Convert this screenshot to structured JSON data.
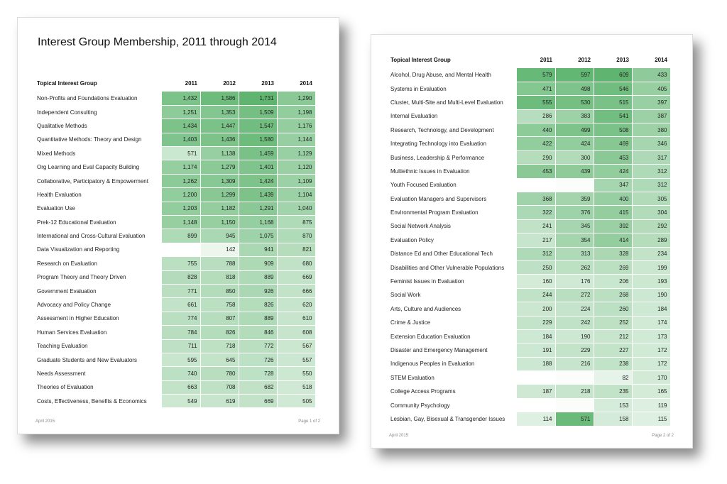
{
  "page1": {
    "title": "Interest Group Membership, 2011 through 2014",
    "headers": [
      "Topical Interest Group",
      "2011",
      "2012",
      "2013",
      "2014"
    ],
    "rows": [
      {
        "name": "Non-Profits and Foundations Evaluation",
        "v": [
          "1,432",
          "1,586",
          "1,731",
          "1,290"
        ]
      },
      {
        "name": "Independent Consulting",
        "v": [
          "1,251",
          "1,353",
          "1,509",
          "1,198"
        ]
      },
      {
        "name": "Qualitative Methods",
        "v": [
          "1,434",
          "1,447",
          "1,547",
          "1,176"
        ]
      },
      {
        "name": "Quantitative Methods: Theory and Design",
        "v": [
          "1,403",
          "1,436",
          "1,580",
          "1,144"
        ]
      },
      {
        "name": "Mixed Methods",
        "v": [
          "571",
          "1,138",
          "1,459",
          "1,129"
        ]
      },
      {
        "name": "Org Learning and Eval Capacity Building",
        "v": [
          "1,174",
          "1,279",
          "1,401",
          "1,120"
        ]
      },
      {
        "name": "Collaborative, Participatory & Empowerment",
        "v": [
          "1,262",
          "1,309",
          "1,424",
          "1,109"
        ]
      },
      {
        "name": "Health Evaluation",
        "v": [
          "1,200",
          "1,299",
          "1,439",
          "1,104"
        ]
      },
      {
        "name": "Evaluation Use",
        "v": [
          "1,203",
          "1,182",
          "1,291",
          "1,040"
        ]
      },
      {
        "name": "Prek-12 Educational Evaluation",
        "v": [
          "1,148",
          "1,150",
          "1,168",
          "875"
        ]
      },
      {
        "name": "International and Cross-Cultural Evaluation",
        "v": [
          "899",
          "945",
          "1,075",
          "870"
        ]
      },
      {
        "name": "Data Visualization and Reporting",
        "v": [
          "",
          "142",
          "941",
          "821"
        ]
      },
      {
        "name": "Research on Evaluation",
        "v": [
          "755",
          "788",
          "909",
          "680"
        ]
      },
      {
        "name": "Program Theory and Theory Driven",
        "v": [
          "828",
          "818",
          "889",
          "669"
        ]
      },
      {
        "name": "Government Evaluation",
        "v": [
          "771",
          "850",
          "926",
          "666"
        ]
      },
      {
        "name": "Advocacy and Policy Change",
        "v": [
          "661",
          "758",
          "826",
          "620"
        ]
      },
      {
        "name": "Assessment in Higher Education",
        "v": [
          "774",
          "807",
          "889",
          "610"
        ]
      },
      {
        "name": "Human Services Evaluation",
        "v": [
          "784",
          "826",
          "846",
          "608"
        ]
      },
      {
        "name": "Teaching Evaluation",
        "v": [
          "711",
          "718",
          "772",
          "567"
        ]
      },
      {
        "name": "Graduate Students and New Evaluators",
        "v": [
          "595",
          "645",
          "726",
          "557"
        ]
      },
      {
        "name": "Needs Assessment",
        "v": [
          "740",
          "780",
          "728",
          "550"
        ]
      },
      {
        "name": "Theories of Evaluation",
        "v": [
          "663",
          "708",
          "682",
          "518"
        ]
      },
      {
        "name": "Costs, Effectiveness, Benefits & Economics",
        "v": [
          "549",
          "619",
          "669",
          "505"
        ]
      }
    ],
    "footer_left": "April 2015",
    "footer_right": "Page 1 of 2"
  },
  "page2": {
    "headers": [
      "Topical Interest Group",
      "2011",
      "2012",
      "2013",
      "2014"
    ],
    "rows": [
      {
        "name": "Alcohol, Drug Abuse, and Mental Health",
        "v": [
          "579",
          "597",
          "609",
          "433"
        ]
      },
      {
        "name": "Systems in Evaluation",
        "v": [
          "471",
          "498",
          "546",
          "405"
        ]
      },
      {
        "name": "Cluster, Multi-Site and Multi-Level Evaluation",
        "v": [
          "555",
          "530",
          "515",
          "397"
        ]
      },
      {
        "name": "Internal Evaluation",
        "v": [
          "286",
          "383",
          "541",
          "387"
        ]
      },
      {
        "name": "Research, Technology, and Development",
        "v": [
          "440",
          "499",
          "508",
          "380"
        ]
      },
      {
        "name": "Integrating Technology into Evaluation",
        "v": [
          "422",
          "424",
          "469",
          "346"
        ]
      },
      {
        "name": "Business, Leadership & Performance",
        "v": [
          "290",
          "300",
          "453",
          "317"
        ]
      },
      {
        "name": "Multiethnic Issues in Evaluation",
        "v": [
          "453",
          "439",
          "424",
          "312"
        ]
      },
      {
        "name": "Youth Focused Evaluation",
        "v": [
          "",
          "",
          "347",
          "312"
        ]
      },
      {
        "name": "Evaluation Managers and Supervisors",
        "v": [
          "368",
          "359",
          "400",
          "305"
        ]
      },
      {
        "name": "Environmental Program Evaluation",
        "v": [
          "322",
          "376",
          "415",
          "304"
        ]
      },
      {
        "name": "Social Network Analysis",
        "v": [
          "241",
          "345",
          "392",
          "292"
        ]
      },
      {
        "name": "Evaluation Policy",
        "v": [
          "217",
          "354",
          "414",
          "289"
        ]
      },
      {
        "name": "Distance Ed and Other Educational Tech",
        "v": [
          "312",
          "313",
          "328",
          "234"
        ]
      },
      {
        "name": "Disabilities and Other Vulnerable Populations",
        "v": [
          "250",
          "262",
          "269",
          "199"
        ]
      },
      {
        "name": "Feminist Issues in Evaluation",
        "v": [
          "160",
          "176",
          "206",
          "193"
        ]
      },
      {
        "name": "Social Work",
        "v": [
          "244",
          "272",
          "268",
          "190"
        ]
      },
      {
        "name": "Arts, Culture and Audiences",
        "v": [
          "200",
          "224",
          "260",
          "184"
        ]
      },
      {
        "name": "Crime & Justice",
        "v": [
          "229",
          "242",
          "252",
          "174"
        ]
      },
      {
        "name": "Extension Education Evaluation",
        "v": [
          "184",
          "190",
          "212",
          "173"
        ]
      },
      {
        "name": "Disaster and Emergency Management",
        "v": [
          "191",
          "229",
          "227",
          "172"
        ]
      },
      {
        "name": "Indigenous Peoples in Evaluation",
        "v": [
          "188",
          "216",
          "238",
          "172"
        ]
      },
      {
        "name": "STEM Evaluation",
        "v": [
          "",
          "",
          "82",
          "170"
        ]
      },
      {
        "name": "College Access Programs",
        "v": [
          "187",
          "218",
          "235",
          "165"
        ]
      },
      {
        "name": "Community Psychology",
        "v": [
          "",
          "",
          "153",
          "119"
        ]
      },
      {
        "name": "Lesbian, Gay, Bisexual & Transgender Issues",
        "v": [
          "114",
          "571",
          "158",
          "115"
        ]
      }
    ],
    "footer_left": "April 2015",
    "footer_right": "Page 2 of 2"
  },
  "colors": {
    "heat_low": "#f4faf5",
    "heat_high": "#5fb56f",
    "page_border": "#dcdcdc"
  }
}
